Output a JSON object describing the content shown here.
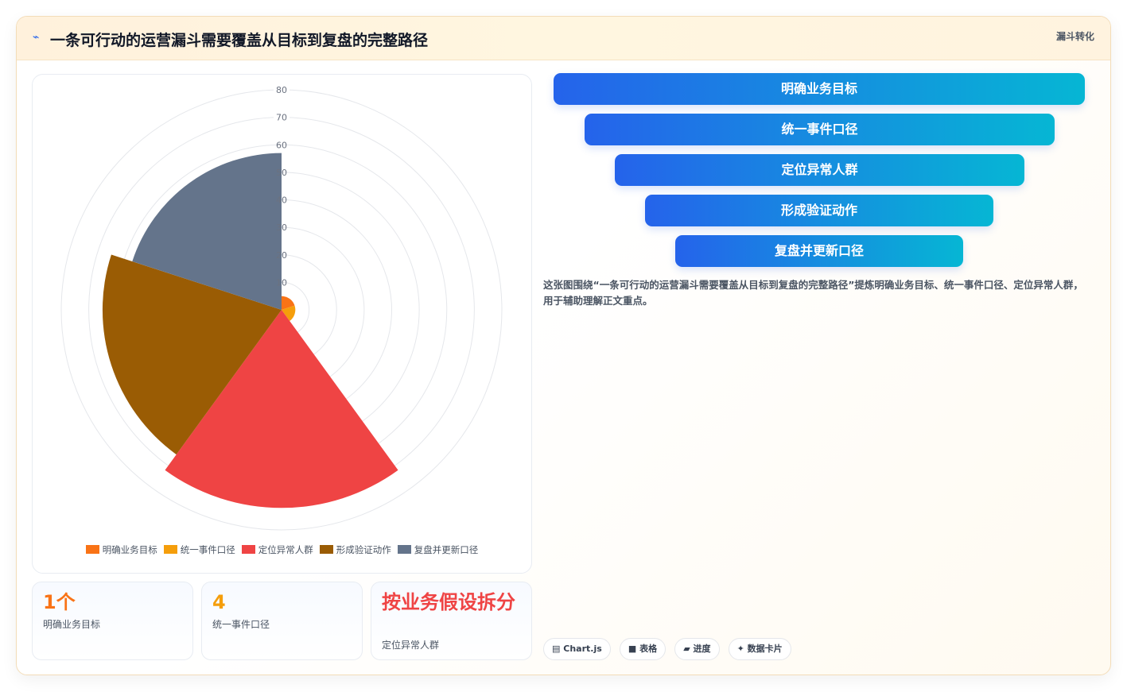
{
  "header": {
    "icon": "lightning-icon",
    "title": "一条可行动的运营漏斗需要覆盖从目标到复盘的完整路径",
    "tag": "漏斗转化"
  },
  "chart_data": {
    "type": "polarArea",
    "categories": [
      "明确业务目标",
      "统一事件口径",
      "定位异常人群",
      "形成验证动作",
      "复盘并更新口径"
    ],
    "values": [
      5,
      5,
      72,
      65,
      57
    ],
    "colors": [
      "#f97316",
      "#f59e0b",
      "#ef4444",
      "#9a5c04",
      "#64748b"
    ],
    "r_ticks": [
      "0",
      "10",
      "20",
      "30",
      "40",
      "50",
      "60",
      "70",
      "80"
    ],
    "r_max": 80,
    "legend_position": "bottom",
    "grid": true
  },
  "stats": [
    {
      "value": "1个",
      "label": "明确业务目标",
      "color": "#f97316"
    },
    {
      "value": "4",
      "label": "统一事件口径",
      "color": "#f59e0b"
    },
    {
      "value": "按业务假设拆分",
      "label": "定位异常人群",
      "color": "#ef4444"
    }
  ],
  "funnel": [
    {
      "label": "明确业务目标"
    },
    {
      "label": "统一事件口径"
    },
    {
      "label": "定位异常人群"
    },
    {
      "label": "形成验证动作"
    },
    {
      "label": "复盘并更新口径"
    }
  ],
  "description": "这张图围绕“一条可行动的运营漏斗需要覆盖从目标到复盘的完整路径”提炼明确业务目标、统一事件口径、定位异常人群，用于辅助理解正文重点。",
  "chips": [
    {
      "icon": "chart-icon",
      "label": "Chart.js"
    },
    {
      "icon": "table-icon",
      "label": "表格"
    },
    {
      "icon": "progress-icon",
      "label": "进度"
    },
    {
      "icon": "sparkle-icon",
      "label": "数据卡片"
    }
  ]
}
